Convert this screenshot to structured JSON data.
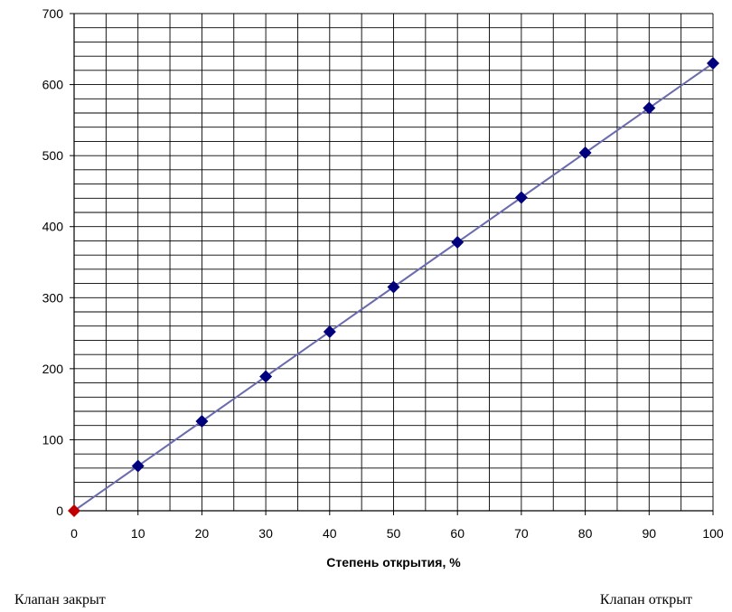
{
  "chart_data": {
    "type": "scatter",
    "title": "",
    "xlabel": "Степень открытия, %",
    "ylabel": "",
    "xlim": [
      0,
      100
    ],
    "ylim": [
      0,
      700
    ],
    "x_ticks": [
      "0",
      "10",
      "20",
      "30",
      "40",
      "50",
      "60",
      "70",
      "80",
      "90",
      "100"
    ],
    "y_ticks": [
      "0",
      "100",
      "200",
      "300",
      "400",
      "500",
      "600",
      "700"
    ],
    "grid": true,
    "legend": "none",
    "series": [
      {
        "x": [
          0,
          10,
          20,
          30,
          40,
          50,
          60,
          70,
          80,
          90,
          100
        ],
        "y": [
          0,
          63,
          126,
          189,
          252,
          315,
          378,
          441,
          504,
          567,
          630
        ],
        "line_color": "#6b6bb0",
        "marker_color": "#00007f",
        "first_marker_color": "#c00000"
      }
    ]
  },
  "annotations": {
    "left": "Клапан закрыт",
    "right": "Клапан открыт"
  }
}
